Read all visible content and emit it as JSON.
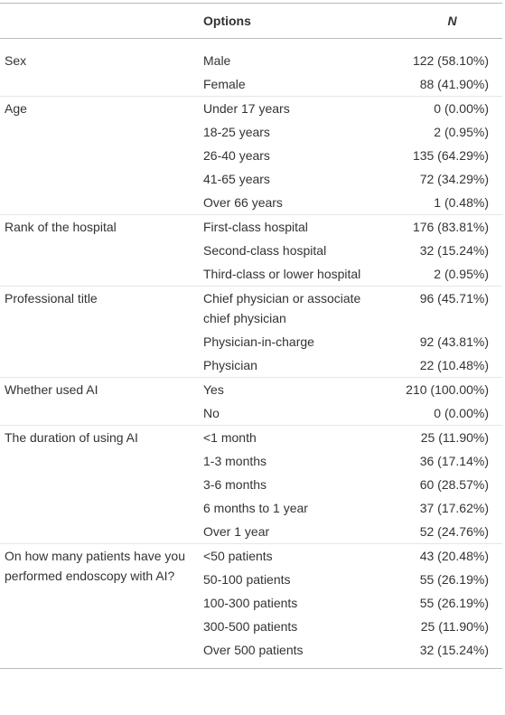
{
  "header": {
    "options": "Options",
    "n": "N"
  },
  "groups": [
    {
      "label": "Sex",
      "rows": [
        {
          "option": "Male",
          "n": "122 (58.10%)"
        },
        {
          "option": "Female",
          "n": "88 (41.90%)"
        }
      ]
    },
    {
      "label": "Age",
      "rows": [
        {
          "option": "Under 17 years",
          "n": "0 (0.00%)"
        },
        {
          "option": "18-25 years",
          "n": "2 (0.95%)"
        },
        {
          "option": "26-40 years",
          "n": "135 (64.29%)"
        },
        {
          "option": "41-65 years",
          "n": "72 (34.29%)"
        },
        {
          "option": "Over 66 years",
          "n": "1 (0.48%)"
        }
      ]
    },
    {
      "label": "Rank of the hospital",
      "rows": [
        {
          "option": "First-class hospital",
          "n": "176 (83.81%)"
        },
        {
          "option": "Second-class hospital",
          "n": "32 (15.24%)"
        },
        {
          "option": "Third-class or lower hospital",
          "n": "2 (0.95%)"
        }
      ]
    },
    {
      "label": "Professional title",
      "rows": [
        {
          "option": "Chief physician or associate chief physician",
          "n": "96 (45.71%)"
        },
        {
          "option": "Physician-in-charge",
          "n": "92 (43.81%)"
        },
        {
          "option": "Physician",
          "n": "22 (10.48%)"
        }
      ]
    },
    {
      "label": "Whether used AI",
      "rows": [
        {
          "option": "Yes",
          "n": "210 (100.00%)"
        },
        {
          "option": "No",
          "n": "0 (0.00%)"
        }
      ]
    },
    {
      "label": "The duration of using AI",
      "rows": [
        {
          "option": "<1 month",
          "n": "25 (11.90%)"
        },
        {
          "option": "1-3 months",
          "n": "36 (17.14%)"
        },
        {
          "option": "3-6 months",
          "n": "60 (28.57%)"
        },
        {
          "option": "6 months to 1 year",
          "n": "37 (17.62%)"
        },
        {
          "option": "Over 1 year",
          "n": "52 (24.76%)"
        }
      ]
    },
    {
      "label": "On how many patients have you performed endoscopy with AI?",
      "rows": [
        {
          "option": "<50 patients",
          "n": "43 (20.48%)"
        },
        {
          "option": "50-100 patients",
          "n": "55 (26.19%)"
        },
        {
          "option": "100-300 patients",
          "n": "55 (26.19%)"
        },
        {
          "option": "300-500 patients",
          "n": "25 (11.90%)"
        },
        {
          "option": "Over 500 patients",
          "n": "32 (15.24%)"
        }
      ]
    }
  ]
}
